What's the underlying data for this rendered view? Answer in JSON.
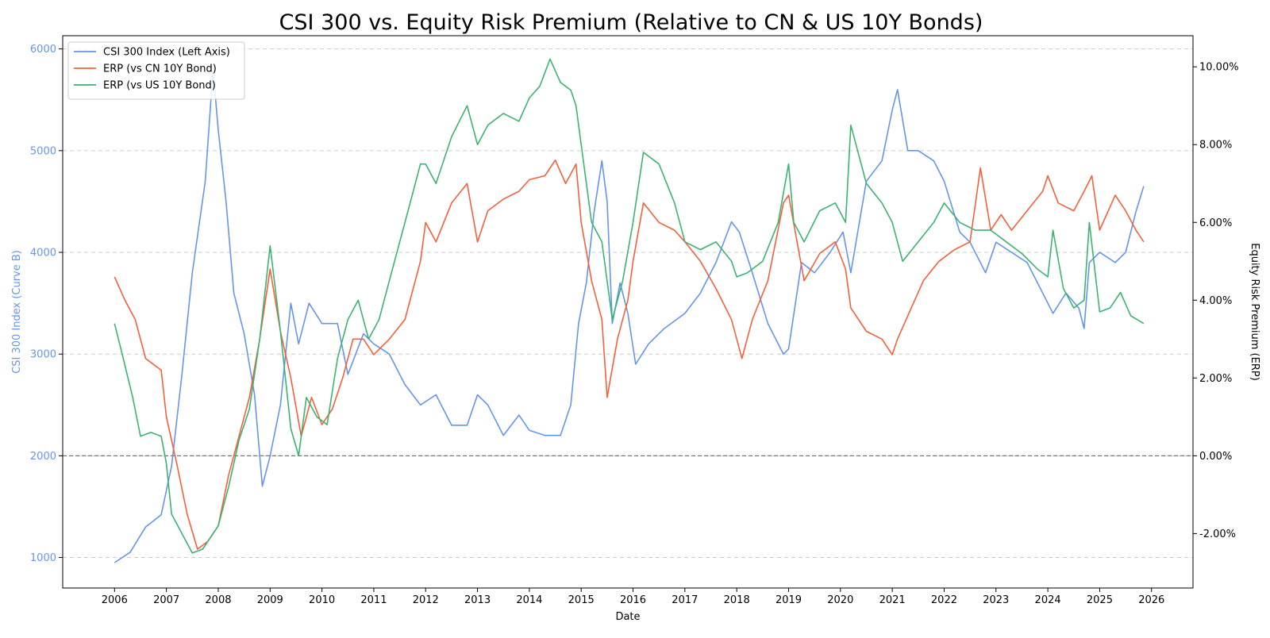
{
  "chart_data": {
    "type": "line",
    "title": "CSI 300 vs. Equity Risk Premium (Relative to CN & US 10Y Bonds)",
    "xlabel": "Date",
    "ylabel_left": "CSI 300 Index (Curve B)",
    "ylabel_right": "Equity Risk Premium (ERP)",
    "xlim": [
      2005.0,
      2026.8
    ],
    "ylim_left": [
      700,
      6130
    ],
    "ylim_right": [
      -3.4,
      10.8
    ],
    "x_ticks": [
      2006,
      2007,
      2008,
      2009,
      2010,
      2011,
      2012,
      2013,
      2014,
      2015,
      2016,
      2017,
      2018,
      2019,
      2020,
      2021,
      2022,
      2023,
      2024,
      2025,
      2026
    ],
    "x_tick_labels": [
      "2006",
      "2007",
      "2008",
      "2009",
      "2010",
      "2011",
      "2012",
      "2013",
      "2014",
      "2015",
      "2016",
      "2017",
      "2018",
      "2019",
      "2020",
      "2021",
      "2022",
      "2023",
      "2024",
      "2025",
      "2026"
    ],
    "y_left_ticks": [
      1000,
      2000,
      3000,
      4000,
      5000,
      6000
    ],
    "y_left_tick_labels": [
      "1000",
      "2000",
      "3000",
      "4000",
      "5000",
      "6000"
    ],
    "y_right_ticks": [
      -2,
      0,
      2,
      4,
      6,
      8,
      10
    ],
    "y_right_tick_labels": [
      "-2.00%",
      "0.00%",
      "2.00%",
      "4.00%",
      "6.00%",
      "8.00%",
      "10.00%"
    ],
    "zero_line_erp": 0,
    "grid": "horizontal dashed",
    "legend_position": "top-left",
    "series": [
      {
        "name": "CSI 300 Index (Left Axis)",
        "axis": "left",
        "color": "#6495ED",
        "x": [
          2006.0,
          2006.3,
          2006.6,
          2006.9,
          2007.1,
          2007.3,
          2007.5,
          2007.75,
          2007.9,
          2008.0,
          2008.15,
          2008.3,
          2008.5,
          2008.7,
          2008.85,
          2009.0,
          2009.2,
          2009.4,
          2009.55,
          2009.75,
          2010.0,
          2010.3,
          2010.5,
          2010.8,
          2011.0,
          2011.3,
          2011.6,
          2011.9,
          2012.2,
          2012.5,
          2012.8,
          2013.0,
          2013.2,
          2013.5,
          2013.8,
          2014.0,
          2014.3,
          2014.6,
          2014.8,
          2014.95,
          2015.1,
          2015.25,
          2015.4,
          2015.5,
          2015.6,
          2015.75,
          2015.9,
          2016.05,
          2016.3,
          2016.6,
          2017.0,
          2017.3,
          2017.6,
          2017.9,
          2018.05,
          2018.3,
          2018.6,
          2018.9,
          2019.0,
          2019.25,
          2019.5,
          2019.8,
          2020.05,
          2020.2,
          2020.5,
          2020.8,
          2021.0,
          2021.1,
          2021.3,
          2021.5,
          2021.8,
          2022.0,
          2022.3,
          2022.5,
          2022.8,
          2023.0,
          2023.3,
          2023.6,
          2023.9,
          2024.1,
          2024.35,
          2024.6,
          2024.7,
          2024.8,
          2025.0,
          2025.3,
          2025.5,
          2025.7,
          2025.85
        ],
        "values": [
          950,
          1050,
          1300,
          1420,
          1900,
          2800,
          3800,
          4700,
          5800,
          5200,
          4500,
          3600,
          3200,
          2600,
          1700,
          2000,
          2500,
          3500,
          3100,
          3500,
          3300,
          3300,
          2800,
          3200,
          3100,
          3000,
          2700,
          2500,
          2600,
          2300,
          2300,
          2600,
          2500,
          2200,
          2400,
          2250,
          2200,
          2200,
          2500,
          3300,
          3700,
          4400,
          4900,
          4500,
          3300,
          3700,
          3400,
          2900,
          3100,
          3250,
          3400,
          3600,
          3900,
          4300,
          4200,
          3800,
          3300,
          3000,
          3050,
          3900,
          3800,
          4000,
          4200,
          3800,
          4700,
          4900,
          5400,
          5600,
          5000,
          5000,
          4900,
          4700,
          4200,
          4100,
          3800,
          4100,
          4000,
          3900,
          3600,
          3400,
          3600,
          3450,
          3250,
          3900,
          4000,
          3900,
          4000,
          4400,
          4650
        ]
      },
      {
        "name": "ERP (vs CN 10Y Bond)",
        "axis": "right",
        "color": "#F4603A",
        "x": [
          2006.0,
          2006.2,
          2006.4,
          2006.6,
          2006.9,
          2007.0,
          2007.2,
          2007.4,
          2007.6,
          2007.8,
          2008.0,
          2008.2,
          2008.4,
          2008.6,
          2008.8,
          2009.0,
          2009.2,
          2009.4,
          2009.6,
          2009.8,
          2010.0,
          2010.2,
          2010.4,
          2010.6,
          2010.8,
          2011.0,
          2011.3,
          2011.6,
          2011.9,
          2012.0,
          2012.2,
          2012.5,
          2012.8,
          2013.0,
          2013.2,
          2013.5,
          2013.8,
          2014.0,
          2014.3,
          2014.5,
          2014.7,
          2014.9,
          2015.0,
          2015.2,
          2015.4,
          2015.5,
          2015.7,
          2015.9,
          2016.0,
          2016.2,
          2016.5,
          2016.8,
          2017.0,
          2017.3,
          2017.6,
          2017.9,
          2018.0,
          2018.1,
          2018.3,
          2018.6,
          2018.9,
          2019.0,
          2019.3,
          2019.6,
          2019.9,
          2020.1,
          2020.2,
          2020.5,
          2020.8,
          2021.0,
          2021.1,
          2021.3,
          2021.6,
          2021.9,
          2022.2,
          2022.5,
          2022.7,
          2022.9,
          2023.1,
          2023.3,
          2023.6,
          2023.9,
          2024.0,
          2024.2,
          2024.5,
          2024.7,
          2024.85,
          2025.0,
          2025.3,
          2025.5,
          2025.7,
          2025.85
        ],
        "values": [
          4.6,
          4.0,
          3.5,
          2.5,
          2.2,
          1.0,
          -0.2,
          -1.5,
          -2.4,
          -2.2,
          -1.8,
          -0.5,
          0.5,
          1.5,
          3.0,
          4.8,
          3.2,
          2.0,
          0.5,
          1.5,
          0.8,
          1.2,
          2.0,
          3.0,
          3.0,
          2.6,
          3.0,
          3.5,
          5.0,
          6.0,
          5.5,
          6.5,
          7.0,
          5.5,
          6.3,
          6.6,
          6.8,
          7.1,
          7.2,
          7.6,
          7.0,
          7.5,
          6.0,
          4.5,
          3.5,
          1.5,
          3.0,
          4.0,
          5.0,
          6.5,
          6.0,
          5.8,
          5.5,
          5.0,
          4.3,
          3.5,
          3.0,
          2.5,
          3.5,
          4.5,
          6.5,
          6.7,
          4.5,
          5.2,
          5.5,
          4.8,
          3.8,
          3.2,
          3.0,
          2.6,
          3.0,
          3.6,
          4.5,
          5.0,
          5.3,
          5.5,
          7.4,
          5.8,
          6.2,
          5.8,
          6.3,
          6.8,
          7.2,
          6.5,
          6.3,
          6.8,
          7.2,
          5.8,
          6.7,
          6.3,
          5.8,
          5.5
        ]
      },
      {
        "name": "ERP (vs US 10Y Bond)",
        "axis": "right",
        "color": "#3CB371",
        "x": [
          2006.0,
          2006.15,
          2006.35,
          2006.5,
          2006.7,
          2006.9,
          2007.0,
          2007.1,
          2007.3,
          2007.5,
          2007.7,
          2007.8,
          2008.0,
          2008.2,
          2008.4,
          2008.6,
          2008.8,
          2009.0,
          2009.2,
          2009.4,
          2009.55,
          2009.7,
          2009.9,
          2010.1,
          2010.3,
          2010.5,
          2010.7,
          2010.9,
          2011.1,
          2011.3,
          2011.5,
          2011.7,
          2011.9,
          2012.0,
          2012.2,
          2012.5,
          2012.8,
          2013.0,
          2013.2,
          2013.5,
          2013.8,
          2014.0,
          2014.2,
          2014.4,
          2014.6,
          2014.8,
          2014.9,
          2015.0,
          2015.2,
          2015.4,
          2015.6,
          2015.8,
          2016.0,
          2016.2,
          2016.5,
          2016.8,
          2017.0,
          2017.3,
          2017.6,
          2017.9,
          2018.0,
          2018.2,
          2018.5,
          2018.8,
          2019.0,
          2019.1,
          2019.3,
          2019.6,
          2019.9,
          2020.1,
          2020.2,
          2020.5,
          2020.8,
          2021.0,
          2021.2,
          2021.5,
          2021.8,
          2022.0,
          2022.3,
          2022.6,
          2022.9,
          2023.2,
          2023.5,
          2023.8,
          2024.0,
          2024.1,
          2024.3,
          2024.5,
          2024.7,
          2024.8,
          2025.0,
          2025.2,
          2025.4,
          2025.6,
          2025.85
        ],
        "values": [
          3.4,
          2.6,
          1.5,
          0.5,
          0.6,
          0.5,
          -0.2,
          -1.5,
          -2.0,
          -2.5,
          -2.4,
          -2.2,
          -1.8,
          -0.8,
          0.4,
          1.2,
          3.0,
          5.4,
          3.2,
          0.7,
          0.0,
          1.5,
          1.0,
          0.8,
          2.5,
          3.5,
          4.0,
          3.0,
          3.5,
          4.5,
          5.5,
          6.5,
          7.5,
          7.5,
          7.0,
          8.2,
          9.0,
          8.0,
          8.5,
          8.8,
          8.6,
          9.2,
          9.5,
          10.2,
          9.6,
          9.4,
          9.0,
          8.0,
          6.0,
          5.5,
          3.5,
          4.5,
          6.0,
          7.8,
          7.5,
          6.5,
          5.5,
          5.3,
          5.5,
          5.0,
          4.6,
          4.7,
          5.0,
          6.0,
          7.5,
          6.0,
          5.5,
          6.3,
          6.5,
          6.0,
          8.5,
          7.0,
          6.5,
          6.0,
          5.0,
          5.5,
          6.0,
          6.5,
          6.0,
          5.8,
          5.8,
          5.5,
          5.2,
          4.8,
          4.6,
          5.8,
          4.3,
          3.8,
          4.0,
          6.0,
          3.7,
          3.8,
          4.2,
          3.6,
          3.4
        ]
      }
    ]
  }
}
